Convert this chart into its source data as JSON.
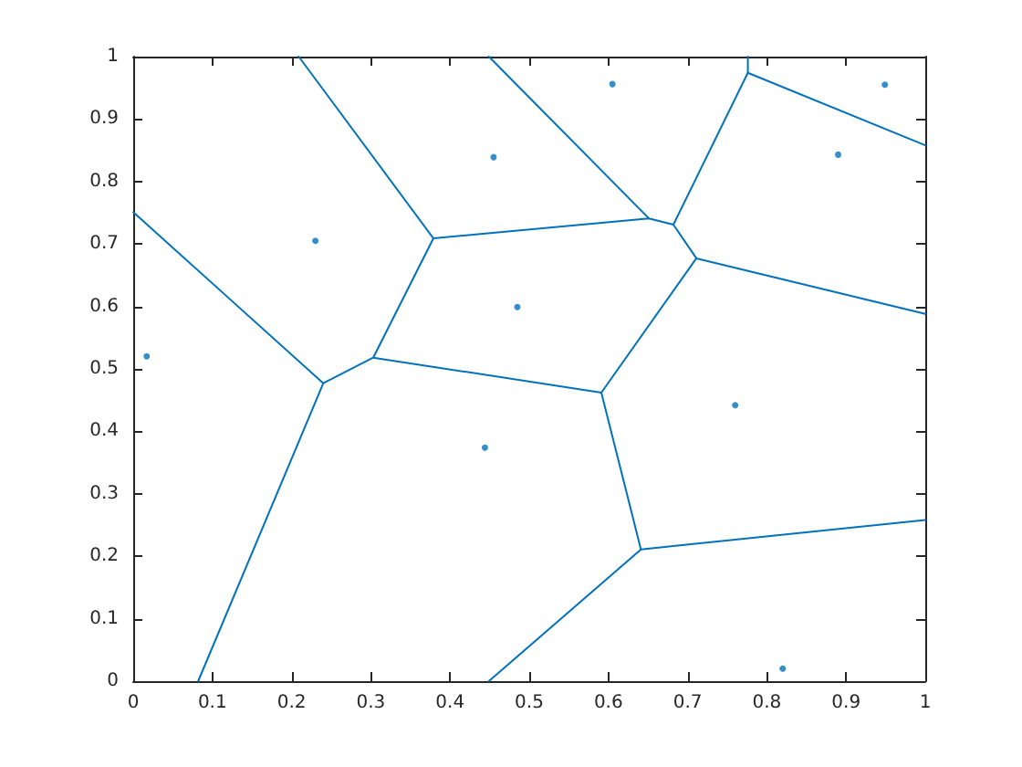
{
  "chart_data": {
    "type": "line",
    "line_style": "solid",
    "marker": "none",
    "xlim": [
      0,
      1
    ],
    "ylim": [
      0,
      1
    ],
    "xticks": [
      0,
      0.1,
      0.2,
      0.3,
      0.4,
      0.5,
      0.6,
      0.7,
      0.8,
      0.9,
      1
    ],
    "yticks": [
      0,
      0.1,
      0.2,
      0.3,
      0.4,
      0.5,
      0.6,
      0.7,
      0.8,
      0.9,
      1
    ],
    "series": [
      {
        "type": "scatter",
        "marker": "circle",
        "color": "#0072bd",
        "x": [
          0.017,
          0.23,
          0.455,
          0.485,
          0.605,
          0.949,
          0.89,
          0.76,
          0.82,
          0.444
        ],
        "values": [
          0.52,
          0.705,
          0.839,
          0.599,
          0.956,
          0.955,
          0.843,
          0.442,
          0.02,
          0.374
        ]
      },
      {
        "color": "#0072bd",
        "x": [
          0.082,
          0.24,
          0.303,
          0.379,
          0.651,
          0.682,
          0.711,
          1
        ],
        "values": [
          0,
          0.477,
          0.518,
          0.709,
          0.741,
          0.731,
          0.677,
          0.588
        ]
      },
      {
        "color": "#0072bd",
        "x": [
          0.682,
          0.776,
          0.776
        ],
        "values": [
          0.731,
          0.974,
          1
        ]
      },
      {
        "color": "#0072bd",
        "x": [
          0.776,
          1
        ],
        "values": [
          0.974,
          0.858
        ]
      },
      {
        "color": "#0072bd",
        "x": [
          0.449,
          0.641,
          1
        ],
        "values": [
          0,
          0.211,
          0.258
        ]
      },
      {
        "color": "#0072bd",
        "x": [
          0.711,
          0.591,
          0.641
        ],
        "values": [
          0.677,
          0.462,
          0.211
        ]
      },
      {
        "color": "#0072bd",
        "x": [
          0.303,
          0.591
        ],
        "values": [
          0.518,
          0.462
        ]
      },
      {
        "color": "#0072bd",
        "x": [
          0,
          0.24
        ],
        "values": [
          0.751,
          0.477
        ]
      },
      {
        "color": "#0072bd",
        "x": [
          0.209,
          0.379
        ],
        "values": [
          1,
          0.709
        ]
      },
      {
        "color": "#0072bd",
        "x": [
          0.449,
          0.651
        ],
        "values": [
          1,
          0.741
        ]
      }
    ]
  }
}
